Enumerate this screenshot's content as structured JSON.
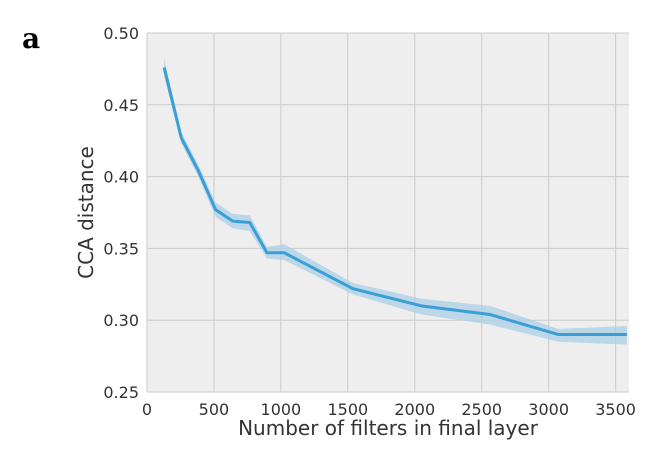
{
  "panel_label": "a",
  "chart_data": {
    "type": "line",
    "title": "",
    "xlabel": "Number of filters in final layer",
    "ylabel": "CCA distance",
    "xlim": [
      0,
      3600
    ],
    "ylim": [
      0.25,
      0.5
    ],
    "xticks": [
      0,
      500,
      1000,
      1500,
      2000,
      2500,
      3000,
      3500
    ],
    "yticks": [
      0.25,
      0.3,
      0.35,
      0.4,
      0.45,
      0.5
    ],
    "xtick_labels": [
      "0",
      "500",
      "1000",
      "1500",
      "2000",
      "2500",
      "3000",
      "3500"
    ],
    "ytick_labels": [
      "0.25",
      "0.30",
      "0.35",
      "0.40",
      "0.45",
      "0.50"
    ],
    "grid": true,
    "background": "#eeeeee",
    "series": [
      {
        "color": "#3a9fd6",
        "band_color": "#a9cfe6",
        "x": [
          128,
          256,
          384,
          512,
          640,
          768,
          896,
          1024,
          1536,
          2048,
          2560,
          3072,
          3584
        ],
        "y": [
          0.476,
          0.427,
          0.404,
          0.377,
          0.369,
          0.368,
          0.347,
          0.347,
          0.322,
          0.31,
          0.304,
          0.29,
          0.29
        ],
        "lower": [
          0.47,
          0.423,
          0.4,
          0.372,
          0.364,
          0.362,
          0.343,
          0.342,
          0.318,
          0.304,
          0.297,
          0.285,
          0.283
        ],
        "upper": [
          0.482,
          0.431,
          0.408,
          0.382,
          0.374,
          0.373,
          0.351,
          0.353,
          0.326,
          0.315,
          0.31,
          0.294,
          0.296
        ]
      }
    ]
  }
}
